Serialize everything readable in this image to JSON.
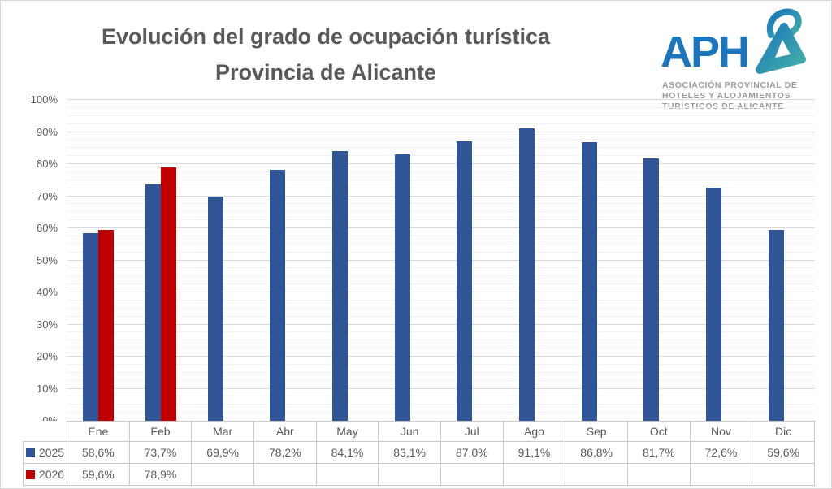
{
  "title": {
    "line1": "Evolución del grado de ocupación turística",
    "line2": "Provincia de Alicante"
  },
  "logo": {
    "wordmark": "APH",
    "stylized_letter": "A",
    "tagline_lines": [
      "ASOCIACIÓN PROVINCIAL DE",
      "HOTELES Y ALOJAMIENTOS",
      "TURÍSTICOS DE ALICANTE"
    ],
    "brand_blue": "#1B75BC",
    "brand_teal": "#43B0A7"
  },
  "chart_data": {
    "type": "bar",
    "title": "Evolución del grado de ocupación turística Provincia de Alicante",
    "categories": [
      "Ene",
      "Feb",
      "Mar",
      "Abr",
      "May",
      "Jun",
      "Jul",
      "Ago",
      "Sep",
      "Oct",
      "Nov",
      "Dic"
    ],
    "series": [
      {
        "name": "2025",
        "color": "#2F5597",
        "values": [
          58.6,
          73.7,
          69.9,
          78.2,
          84.1,
          83.1,
          87.0,
          91.1,
          86.8,
          81.7,
          72.6,
          59.6
        ],
        "labels": [
          "58,6%",
          "73,7%",
          "69,9%",
          "78,2%",
          "84,1%",
          "83,1%",
          "87,0%",
          "91,1%",
          "86,8%",
          "81,7%",
          "72,6%",
          "59,6%"
        ]
      },
      {
        "name": "2026",
        "color": "#C00000",
        "values": [
          59.6,
          78.9,
          null,
          null,
          null,
          null,
          null,
          null,
          null,
          null,
          null,
          null
        ],
        "labels": [
          "59,6%",
          "78,9%",
          "",
          "",
          "",
          "",
          "",
          "",
          "",
          "",
          "",
          ""
        ]
      }
    ],
    "ylim": [
      0,
      100
    ],
    "y_major_step": 10,
    "y_minor_step": 2.5,
    "y_tick_labels": [
      "0%",
      "10%",
      "20%",
      "30%",
      "40%",
      "50%",
      "60%",
      "70%",
      "80%",
      "90%",
      "100%"
    ],
    "grid": true,
    "legend_position": "data-table-left"
  },
  "colors": {
    "title_text": "#595959",
    "axis_text": "#595959",
    "table_text": "#595959",
    "gridline_major": "#D9D9D9",
    "gridline_minor": "#F2F2F2",
    "table_border": "#C9C9C9",
    "chart_border": "#D9D9D9",
    "background": "#FFFFFF"
  }
}
